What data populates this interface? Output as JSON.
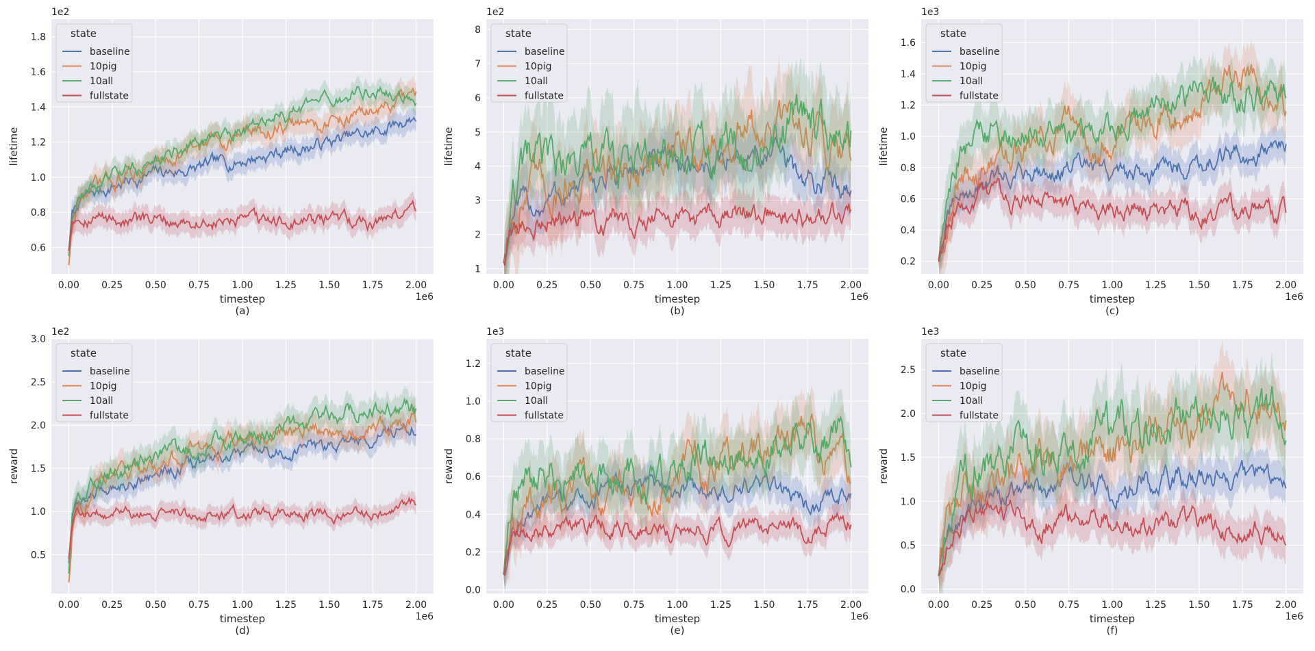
{
  "legend_title": "state",
  "series_colors": {
    "baseline": "#4c72b0",
    "10pig": "#dd8452",
    "10all": "#55a868",
    "fullstate": "#c44e52"
  },
  "chart_data": [
    {
      "type": "line",
      "sub_label": "(a)",
      "xlabel": "timestep",
      "ylabel": "lifetime",
      "x_offset_text": "1e6",
      "y_offset_text": "1e2",
      "xlim": [
        -0.1,
        2.1
      ],
      "ylim": [
        0.45,
        1.9
      ],
      "xticks": [
        0.0,
        0.25,
        0.5,
        0.75,
        1.0,
        1.25,
        1.5,
        1.75,
        2.0
      ],
      "xtick_labels": [
        "0.00",
        "0.25",
        "0.50",
        "0.75",
        "1.00",
        "1.25",
        "1.50",
        "1.75",
        "2.00"
      ],
      "yticks": [
        0.6,
        0.8,
        1.0,
        1.2,
        1.4,
        1.6,
        1.8
      ],
      "ytick_labels": [
        "0.6",
        "0.8",
        "1.0",
        "1.2",
        "1.4",
        "1.6",
        "1.8"
      ],
      "legend_position": "top-left",
      "x": [
        0.0,
        0.02,
        0.05,
        0.1,
        0.25,
        0.5,
        0.75,
        1.0,
        1.25,
        1.5,
        1.75,
        2.0
      ],
      "series": [
        {
          "name": "baseline",
          "values": [
            0.58,
            0.78,
            0.85,
            0.88,
            0.95,
            1.02,
            1.05,
            1.1,
            1.15,
            1.2,
            1.25,
            1.35
          ],
          "band": 0.06
        },
        {
          "name": "10pig",
          "values": [
            0.5,
            0.7,
            0.85,
            0.9,
            0.98,
            1.08,
            1.18,
            1.25,
            1.28,
            1.32,
            1.38,
            1.45
          ],
          "band": 0.07
        },
        {
          "name": "10all",
          "values": [
            0.55,
            0.8,
            0.9,
            0.92,
            1.0,
            1.1,
            1.2,
            1.28,
            1.35,
            1.42,
            1.5,
            1.45
          ],
          "band": 0.06
        },
        {
          "name": "fullstate",
          "values": [
            0.58,
            0.78,
            0.8,
            0.79,
            0.76,
            0.74,
            0.75,
            0.74,
            0.74,
            0.75,
            0.74,
            0.83
          ],
          "band": 0.06
        }
      ]
    },
    {
      "type": "line",
      "sub_label": "(b)",
      "xlabel": "timestep",
      "ylabel": "lifetime",
      "x_offset_text": "1e6",
      "y_offset_text": "1e2",
      "xlim": [
        -0.1,
        2.1
      ],
      "ylim": [
        0.85,
        8.3
      ],
      "xticks": [
        0.0,
        0.25,
        0.5,
        0.75,
        1.0,
        1.25,
        1.5,
        1.75,
        2.0
      ],
      "xtick_labels": [
        "0.00",
        "0.25",
        "0.50",
        "0.75",
        "1.00",
        "1.25",
        "1.50",
        "1.75",
        "2.00"
      ],
      "yticks": [
        1,
        2,
        3,
        4,
        5,
        6,
        7,
        8
      ],
      "ytick_labels": [
        "1",
        "2",
        "3",
        "4",
        "5",
        "6",
        "7",
        "8"
      ],
      "legend_position": "top-left",
      "x": [
        0.0,
        0.05,
        0.1,
        0.25,
        0.5,
        0.75,
        1.0,
        1.25,
        1.5,
        1.75,
        2.0
      ],
      "series": [
        {
          "name": "baseline",
          "values": [
            1.2,
            2.5,
            2.7,
            3.0,
            3.5,
            3.9,
            4.0,
            4.1,
            4.5,
            3.5,
            3.6
          ],
          "band": 0.6
        },
        {
          "name": "10pig",
          "values": [
            1.2,
            2.7,
            3.1,
            3.4,
            3.8,
            3.9,
            4.3,
            4.6,
            5.0,
            5.2,
            4.5
          ],
          "band": 0.9
        },
        {
          "name": "10all",
          "values": [
            1.2,
            2.8,
            3.6,
            4.0,
            4.2,
            4.0,
            4.0,
            4.4,
            4.8,
            5.5,
            5.0
          ],
          "band": 1.0
        },
        {
          "name": "fullstate",
          "values": [
            1.2,
            2.1,
            2.2,
            2.4,
            2.5,
            2.6,
            2.45,
            2.5,
            2.6,
            2.4,
            2.6
          ],
          "band": 0.5
        }
      ]
    },
    {
      "type": "line",
      "sub_label": "(c)",
      "xlabel": "timestep",
      "ylabel": "lifetime",
      "x_offset_text": "1e6",
      "y_offset_text": "1e3",
      "xlim": [
        -0.1,
        2.1
      ],
      "ylim": [
        0.12,
        1.75
      ],
      "xticks": [
        0.0,
        0.25,
        0.5,
        0.75,
        1.0,
        1.25,
        1.5,
        1.75,
        2.0
      ],
      "xtick_labels": [
        "0.00",
        "0.25",
        "0.50",
        "0.75",
        "1.00",
        "1.25",
        "1.50",
        "1.75",
        "2.00"
      ],
      "yticks": [
        0.2,
        0.4,
        0.6,
        0.8,
        1.0,
        1.2,
        1.4,
        1.6
      ],
      "ytick_labels": [
        "0.2",
        "0.4",
        "0.6",
        "0.8",
        "1.0",
        "1.2",
        "1.4",
        "1.6"
      ],
      "legend_position": "top-left",
      "x": [
        0.0,
        0.05,
        0.1,
        0.25,
        0.5,
        0.75,
        1.0,
        1.25,
        1.5,
        1.75,
        2.0
      ],
      "series": [
        {
          "name": "baseline",
          "values": [
            0.2,
            0.45,
            0.58,
            0.7,
            0.78,
            0.8,
            0.75,
            0.8,
            0.85,
            0.88,
            0.92
          ],
          "band": 0.1
        },
        {
          "name": "10pig",
          "values": [
            0.2,
            0.5,
            0.65,
            0.8,
            0.9,
            1.05,
            1.0,
            1.15,
            1.25,
            1.4,
            1.2
          ],
          "band": 0.15
        },
        {
          "name": "10all",
          "values": [
            0.22,
            0.6,
            0.85,
            1.0,
            1.02,
            1.0,
            1.05,
            1.15,
            1.3,
            1.28,
            1.25
          ],
          "band": 0.15
        },
        {
          "name": "fullstate",
          "values": [
            0.2,
            0.45,
            0.55,
            0.65,
            0.58,
            0.55,
            0.55,
            0.55,
            0.5,
            0.52,
            0.52
          ],
          "band": 0.1
        }
      ]
    },
    {
      "type": "line",
      "sub_label": "(d)",
      "xlabel": "timestep",
      "ylabel": "reward",
      "x_offset_text": "1e6",
      "y_offset_text": "1e2",
      "xlim": [
        -0.1,
        2.1
      ],
      "ylim": [
        0.05,
        3.0
      ],
      "xticks": [
        0.0,
        0.25,
        0.5,
        0.75,
        1.0,
        1.25,
        1.5,
        1.75,
        2.0
      ],
      "xtick_labels": [
        "0.00",
        "0.25",
        "0.50",
        "0.75",
        "1.00",
        "1.25",
        "1.50",
        "1.75",
        "2.00"
      ],
      "yticks": [
        0.5,
        1.0,
        1.5,
        2.0,
        2.5,
        3.0
      ],
      "ytick_labels": [
        "0.5",
        "1.0",
        "1.5",
        "2.0",
        "2.5",
        "3.0"
      ],
      "legend_position": "top-left",
      "x": [
        0.0,
        0.02,
        0.05,
        0.1,
        0.25,
        0.5,
        0.75,
        1.0,
        1.25,
        1.5,
        1.75,
        2.0
      ],
      "series": [
        {
          "name": "baseline",
          "values": [
            0.4,
            0.9,
            1.05,
            1.15,
            1.3,
            1.45,
            1.55,
            1.65,
            1.7,
            1.75,
            1.85,
            2.0
          ],
          "band": 0.12
        },
        {
          "name": "10pig",
          "values": [
            0.18,
            0.8,
            1.1,
            1.2,
            1.4,
            1.55,
            1.7,
            1.8,
            1.9,
            1.95,
            2.0,
            2.05
          ],
          "band": 0.15
        },
        {
          "name": "10all",
          "values": [
            0.28,
            0.9,
            1.15,
            1.25,
            1.45,
            1.6,
            1.75,
            1.9,
            2.0,
            2.1,
            2.2,
            2.2
          ],
          "band": 0.15
        },
        {
          "name": "fullstate",
          "values": [
            0.45,
            0.85,
            0.95,
            1.0,
            1.0,
            0.97,
            0.98,
            0.96,
            0.97,
            0.96,
            0.97,
            1.08
          ],
          "band": 0.1
        }
      ]
    },
    {
      "type": "line",
      "sub_label": "(e)",
      "xlabel": "timestep",
      "ylabel": "reward",
      "x_offset_text": "1e6",
      "y_offset_text": "1e3",
      "xlim": [
        -0.1,
        2.1
      ],
      "ylim": [
        -0.02,
        1.33
      ],
      "xticks": [
        0.0,
        0.25,
        0.5,
        0.75,
        1.0,
        1.25,
        1.5,
        1.75,
        2.0
      ],
      "xtick_labels": [
        "0.00",
        "0.25",
        "0.50",
        "0.75",
        "1.00",
        "1.25",
        "1.50",
        "1.75",
        "2.00"
      ],
      "yticks": [
        0.0,
        0.2,
        0.4,
        0.6,
        0.8,
        1.0,
        1.2
      ],
      "ytick_labels": [
        "0.0",
        "0.2",
        "0.4",
        "0.6",
        "0.8",
        "1.0",
        "1.2"
      ],
      "legend_position": "top-left",
      "x": [
        0.0,
        0.05,
        0.1,
        0.25,
        0.5,
        0.75,
        1.0,
        1.25,
        1.5,
        1.75,
        2.0
      ],
      "series": [
        {
          "name": "baseline",
          "values": [
            0.08,
            0.32,
            0.38,
            0.42,
            0.5,
            0.55,
            0.55,
            0.5,
            0.55,
            0.45,
            0.5
          ],
          "band": 0.08
        },
        {
          "name": "10pig",
          "values": [
            0.08,
            0.35,
            0.42,
            0.48,
            0.55,
            0.55,
            0.6,
            0.7,
            0.75,
            0.8,
            0.65
          ],
          "band": 0.15
        },
        {
          "name": "10all",
          "values": [
            0.08,
            0.4,
            0.55,
            0.58,
            0.62,
            0.6,
            0.62,
            0.7,
            0.75,
            0.85,
            0.75
          ],
          "band": 0.15
        },
        {
          "name": "fullstate",
          "values": [
            0.08,
            0.25,
            0.28,
            0.3,
            0.32,
            0.33,
            0.3,
            0.32,
            0.33,
            0.3,
            0.35
          ],
          "band": 0.07
        }
      ]
    },
    {
      "type": "line",
      "sub_label": "(f)",
      "xlabel": "timestep",
      "ylabel": "reward",
      "x_offset_text": "1e6",
      "y_offset_text": "1e3",
      "xlim": [
        -0.1,
        2.1
      ],
      "ylim": [
        -0.05,
        2.85
      ],
      "xticks": [
        0.0,
        0.25,
        0.5,
        0.75,
        1.0,
        1.25,
        1.5,
        1.75,
        2.0
      ],
      "xtick_labels": [
        "0.00",
        "0.25",
        "0.50",
        "0.75",
        "1.00",
        "1.25",
        "1.50",
        "1.75",
        "2.00"
      ],
      "yticks": [
        0.0,
        0.5,
        1.0,
        1.5,
        2.0,
        2.5
      ],
      "ytick_labels": [
        "0.0",
        "0.5",
        "1.0",
        "1.5",
        "2.0",
        "2.5"
      ],
      "legend_position": "top-left",
      "x": [
        0.0,
        0.05,
        0.1,
        0.25,
        0.5,
        0.75,
        1.0,
        1.25,
        1.5,
        1.75,
        2.0
      ],
      "series": [
        {
          "name": "baseline",
          "values": [
            0.15,
            0.6,
            0.75,
            1.0,
            1.1,
            1.25,
            1.1,
            1.2,
            1.3,
            1.25,
            1.3
          ],
          "band": 0.2
        },
        {
          "name": "10pig",
          "values": [
            0.15,
            0.7,
            0.9,
            1.1,
            1.3,
            1.5,
            1.6,
            1.8,
            2.0,
            2.2,
            1.95
          ],
          "band": 0.35
        },
        {
          "name": "10all",
          "values": [
            0.15,
            0.8,
            1.2,
            1.45,
            1.6,
            1.6,
            1.75,
            1.9,
            2.05,
            2.0,
            1.95
          ],
          "band": 0.35
        },
        {
          "name": "fullstate",
          "values": [
            0.15,
            0.6,
            0.8,
            0.95,
            0.8,
            0.75,
            0.8,
            0.7,
            0.75,
            0.65,
            0.72
          ],
          "band": 0.2
        }
      ]
    }
  ]
}
